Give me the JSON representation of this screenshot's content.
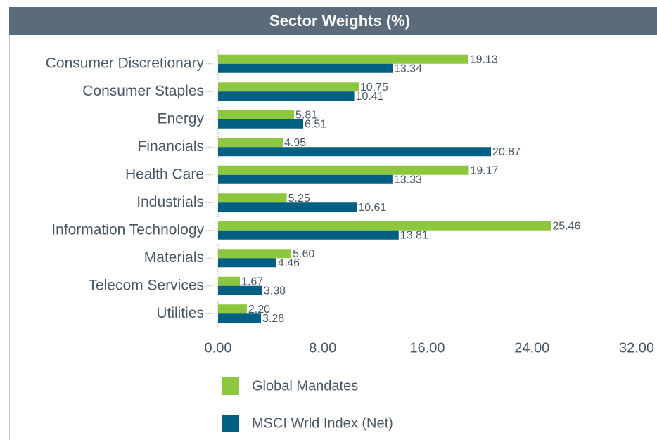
{
  "chart_data": {
    "type": "hbar",
    "title": "Sector Weights (%)",
    "categories": [
      "Consumer Discretionary",
      "Consumer Staples",
      "Energy",
      "Financials",
      "Health Care",
      "Industrials",
      "Information Technology",
      "Materials",
      "Telecom Services",
      "Utilities"
    ],
    "series": [
      {
        "name": "Global Mandates",
        "color": "#8dc63f",
        "values": [
          19.13,
          10.75,
          5.81,
          4.95,
          19.17,
          5.25,
          25.46,
          5.6,
          1.67,
          2.2
        ],
        "value_labels": [
          "19.13",
          "10.75",
          "5.81",
          "4.95",
          "19.17",
          "5.25",
          "25.46",
          "5.60",
          "1.67",
          "2.20"
        ]
      },
      {
        "name": "MSCI Wrld Index (Net)",
        "color": "#005f83",
        "values": [
          13.34,
          10.41,
          6.51,
          20.87,
          13.33,
          10.61,
          13.81,
          4.46,
          3.38,
          3.28
        ],
        "value_labels": [
          "13.34",
          "10.41",
          "6.51",
          "20.87",
          "13.33",
          "10.61",
          "13.81",
          "4.46",
          "3.38",
          "3.28"
        ]
      }
    ],
    "xlim": [
      0,
      32
    ],
    "xticks": [
      {
        "value": 0,
        "label": "0.00"
      },
      {
        "value": 8,
        "label": "8.00"
      },
      {
        "value": 16,
        "label": "16.00"
      },
      {
        "value": 24,
        "label": "24.00"
      },
      {
        "value": 32,
        "label": "32.00"
      }
    ]
  }
}
